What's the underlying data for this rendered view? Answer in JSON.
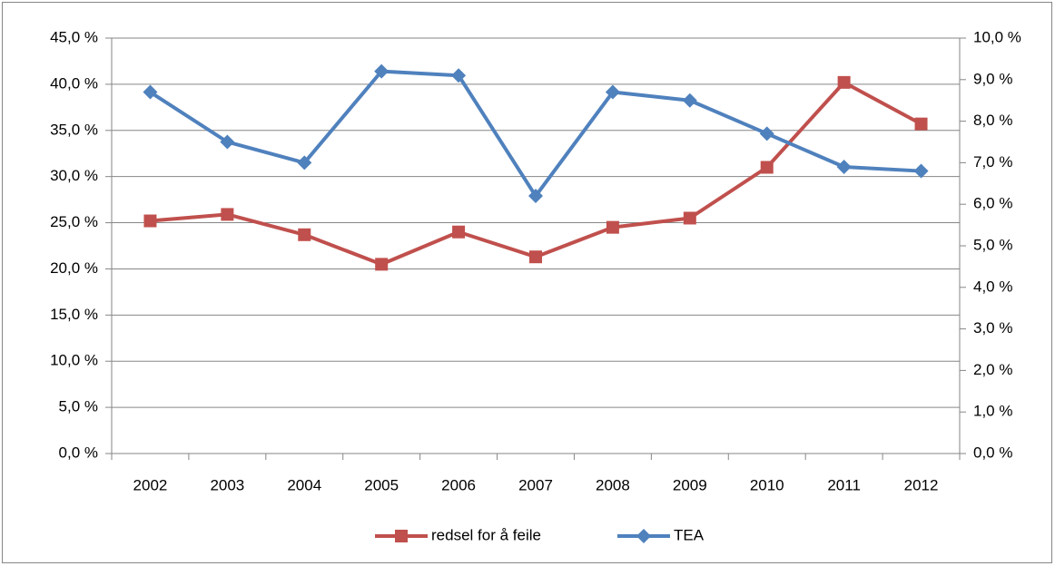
{
  "chart_data": {
    "type": "line",
    "categories": [
      "2002",
      "2003",
      "2004",
      "2005",
      "2006",
      "2007",
      "2008",
      "2009",
      "2010",
      "2011",
      "2012"
    ],
    "series": [
      {
        "name": "redsel for å feile",
        "color": "#c0504d",
        "marker": "square",
        "axis": "y",
        "values": [
          25.2,
          25.9,
          23.7,
          20.5,
          24.0,
          21.3,
          24.5,
          25.5,
          31.0,
          40.2,
          35.7
        ]
      },
      {
        "name": "TEA",
        "color": "#4f81bd",
        "marker": "diamond",
        "axis": "y2",
        "values": [
          8.7,
          7.5,
          7.0,
          9.2,
          9.1,
          6.2,
          8.7,
          8.5,
          7.7,
          6.9,
          6.8
        ]
      }
    ],
    "ylim": [
      0,
      45
    ],
    "yticks": [
      {
        "value": 0,
        "label": "0,0 %"
      },
      {
        "value": 5,
        "label": "5,0 %"
      },
      {
        "value": 10,
        "label": "10,0 %"
      },
      {
        "value": 15,
        "label": "15,0 %"
      },
      {
        "value": 20,
        "label": "20,0 %"
      },
      {
        "value": 25,
        "label": "25,0 %"
      },
      {
        "value": 30,
        "label": "30,0 %"
      },
      {
        "value": 35,
        "label": "35,0 %"
      },
      {
        "value": 40,
        "label": "40,0 %"
      },
      {
        "value": 45,
        "label": "45,0 %"
      }
    ],
    "y2lim": [
      0,
      10
    ],
    "y2ticks": [
      {
        "value": 0,
        "label": "0,0 %"
      },
      {
        "value": 1,
        "label": "1,0 %"
      },
      {
        "value": 2,
        "label": "2,0 %"
      },
      {
        "value": 3,
        "label": "3,0 %"
      },
      {
        "value": 4,
        "label": "4,0 %"
      },
      {
        "value": 5,
        "label": "5,0 %"
      },
      {
        "value": 6,
        "label": "6,0 %"
      },
      {
        "value": 7,
        "label": "7,0 %"
      },
      {
        "value": 8,
        "label": "8,0 %"
      },
      {
        "value": 9,
        "label": "9,0 %"
      },
      {
        "value": 10,
        "label": "10,0 %"
      }
    ],
    "grid": true,
    "legend": "bottom"
  }
}
